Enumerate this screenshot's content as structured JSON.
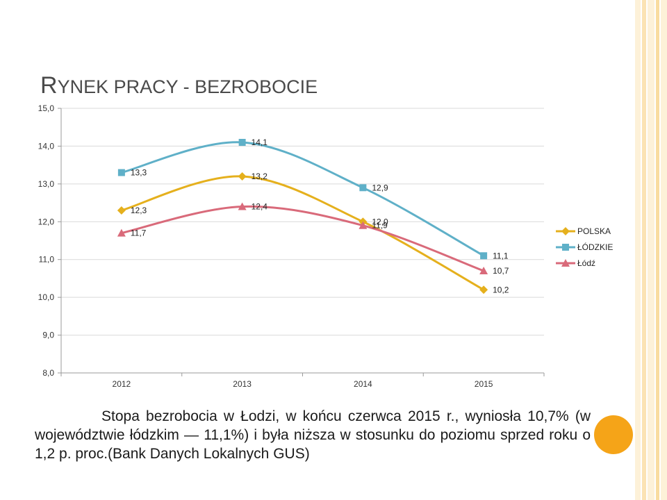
{
  "title": {
    "first_big": "R",
    "rest_small": "YNEK PRACY - BEZROBOCIE"
  },
  "chart_data": {
    "type": "line",
    "categories": [
      "2012",
      "2013",
      "2014",
      "2015"
    ],
    "y_ticks": [
      "15,0",
      "14,0",
      "13,0",
      "12,0",
      "11,0",
      "10,0",
      "9,0",
      "8,0"
    ],
    "ylim": [
      8,
      15
    ],
    "legend_position": "right",
    "series": [
      {
        "name": "POLSKA",
        "values": [
          12.3,
          13.2,
          12.0,
          10.2
        ],
        "labels": [
          "12,3",
          "13,2",
          "12,0",
          "10,2"
        ],
        "color": "#e5b01d",
        "marker": "diamond"
      },
      {
        "name": "ŁÓDZKIE",
        "values": [
          13.3,
          14.1,
          12.9,
          11.1
        ],
        "labels": [
          "13,3",
          "14,1",
          "12,9",
          "11,1"
        ],
        "color": "#5fb0c8",
        "marker": "square"
      },
      {
        "name": "Łódź",
        "values": [
          11.7,
          12.4,
          11.9,
          10.7
        ],
        "labels": [
          "11,7",
          "12,4",
          "11,9",
          "10,7"
        ],
        "color": "#d96a7a",
        "marker": "triangle"
      }
    ]
  },
  "caption": {
    "line1": "Stopa bezrobocia w Łodzi, w końcu czerwca 2015 r., wyniosła 10,7% (w województwie łódzkim — 11,1%) i była niższa w stosunku do poziomu sprzed roku o 1,2 p. proc.(Bank Danych Lokalnych GUS)"
  },
  "colors": {
    "accent_dot": "#f5a418",
    "stripe_light": "#fbe9c6",
    "stripe_mid": "#f7d391"
  }
}
